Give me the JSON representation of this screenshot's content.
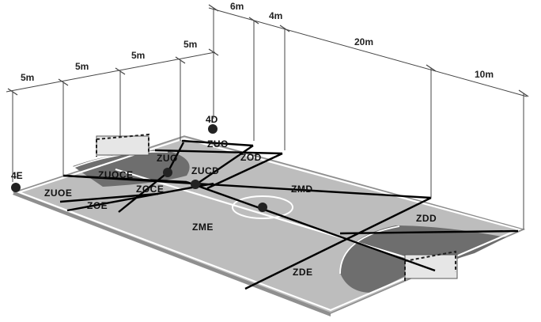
{
  "dimensions": {
    "left_segments": [
      "5m",
      "5m",
      "5m",
      "5m"
    ],
    "right_segments": [
      "6m",
      "4m",
      "20m",
      "10m"
    ]
  },
  "markers": {
    "4D": "4D",
    "4E": "4E"
  },
  "zones": {
    "ZUO": "ZUO",
    "ZOD": "ZOD",
    "ZUOCE": "ZUOCE",
    "ZUCD": "ZUCD",
    "ZOCE": "ZOCE",
    "ZUOE": "ZUOE",
    "ZOE": "ZOE",
    "ZMD": "ZMD",
    "ZME": "ZME",
    "ZDD": "ZDD",
    "ZDE": "ZDE"
  },
  "colors": {
    "court": "#bdbdbd",
    "court_edge": "#9a9a9a",
    "shaded_area": "#6e6e6e",
    "zone_lines": "#000000",
    "court_lines": "#ffffff"
  }
}
